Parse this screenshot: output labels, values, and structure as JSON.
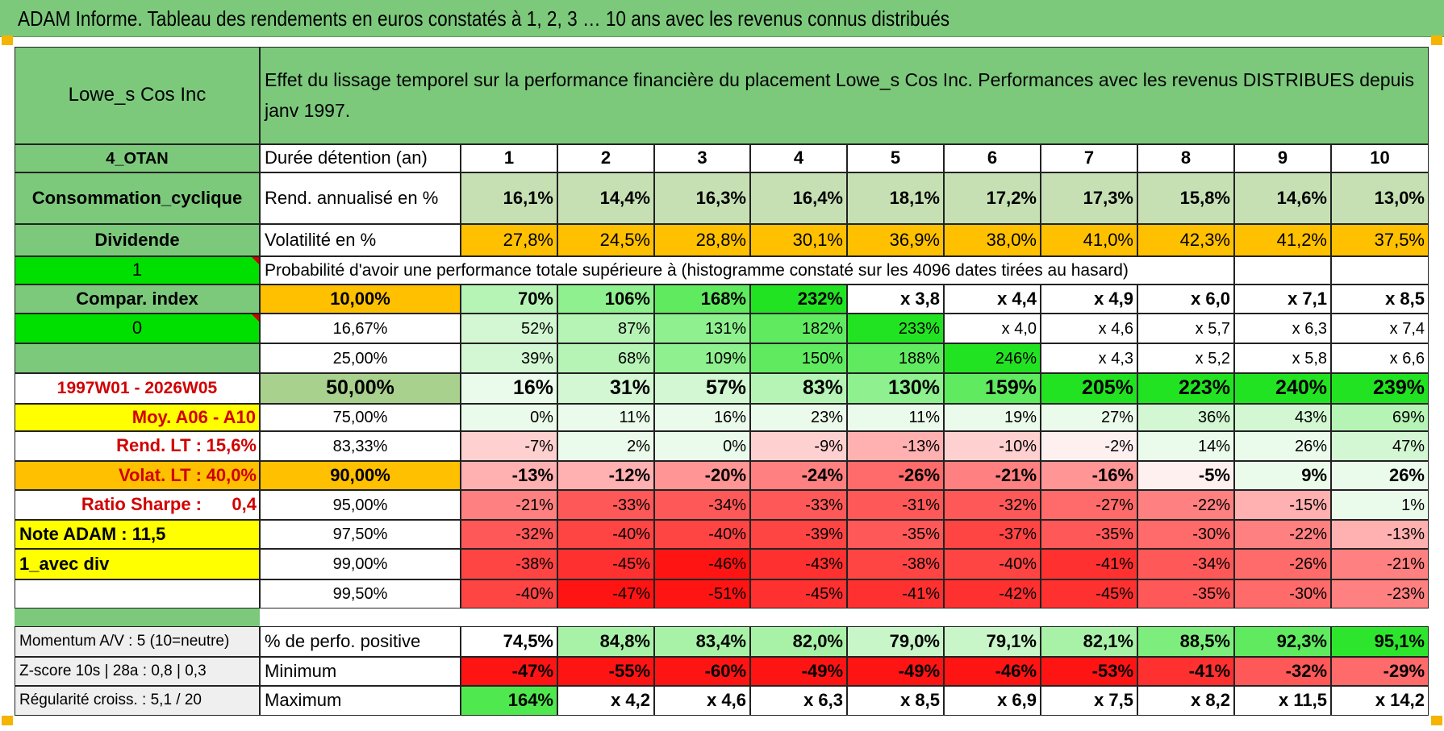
{
  "title": "ADAM Informe. Tableau des rendements en euros constatés à 1, 2, 3 … 10 ans avec les revenus connus distribués",
  "header": {
    "name": "Lowe_s Cos Inc",
    "description": "Effet du lissage temporel sur la performance financière du placement Lowe_s Cos Inc. Performances avec les revenus DISTRIBUES depuis janv 1997."
  },
  "left": {
    "sector_code": "4_OTAN",
    "sector": "Consommation_cyclique",
    "dividend": "Dividende",
    "flag1": "1",
    "compar": "Compar. index",
    "flag0": "0",
    "blank": "",
    "period": "1997W01 - 2026W05",
    "moy": "Moy. A06 - A10",
    "rend_label": "Rend. LT :",
    "rend_val": "15,6%",
    "volat_label": "Volat. LT :",
    "volat_val": "40,0%",
    "sharpe_label": "Ratio Sharpe :",
    "sharpe_val": "0,4",
    "note": "Note ADAM : 11,5",
    "avec_div": "1_avec div",
    "momentum": "Momentum A/V : 5 (10=neutre)",
    "zscore": "Z-score 10s | 28a : 0,8 | 0,3",
    "regularite": "Régularité croiss. : 5,1 / 20"
  },
  "labels": {
    "duree": "Durée détention (an)",
    "rend": "Rend. annualisé en %",
    "vol": "Volatilité en %",
    "prob": "Probabilité d'avoir une performance totale supérieure à (histogramme constaté sur les 4096 dates tirées au hasard)",
    "pos": "% de perfo. positive",
    "min": "Minimum",
    "max": "Maximum"
  },
  "years": [
    "1",
    "2",
    "3",
    "4",
    "5",
    "6",
    "7",
    "8",
    "9",
    "10"
  ],
  "rend": [
    "16,1%",
    "14,4%",
    "16,3%",
    "16,4%",
    "18,1%",
    "17,2%",
    "17,3%",
    "15,8%",
    "14,6%",
    "13,0%"
  ],
  "vol": [
    "27,8%",
    "24,5%",
    "28,8%",
    "30,1%",
    "36,9%",
    "38,0%",
    "41,0%",
    "42,3%",
    "41,2%",
    "37,5%"
  ],
  "prob_rows": [
    {
      "p": "10,00%",
      "v": [
        "70%",
        "106%",
        "168%",
        "232%",
        "x 3,8",
        "x 4,4",
        "x 4,9",
        "x 6,0",
        "x 7,1",
        "x 8,5"
      ]
    },
    {
      "p": "16,67%",
      "v": [
        "52%",
        "87%",
        "131%",
        "182%",
        "233%",
        "x 4,0",
        "x 4,6",
        "x 5,7",
        "x 6,3",
        "x 7,4"
      ]
    },
    {
      "p": "25,00%",
      "v": [
        "39%",
        "68%",
        "109%",
        "150%",
        "188%",
        "246%",
        "x 4,3",
        "x 5,2",
        "x 5,8",
        "x 6,6"
      ]
    },
    {
      "p": "50,00%",
      "v": [
        "16%",
        "31%",
        "57%",
        "83%",
        "130%",
        "159%",
        "205%",
        "223%",
        "240%",
        "239%"
      ]
    },
    {
      "p": "75,00%",
      "v": [
        "0%",
        "11%",
        "16%",
        "23%",
        "11%",
        "19%",
        "27%",
        "36%",
        "43%",
        "69%"
      ]
    },
    {
      "p": "83,33%",
      "v": [
        "-7%",
        "2%",
        "0%",
        "-9%",
        "-13%",
        "-10%",
        "-2%",
        "14%",
        "26%",
        "47%"
      ]
    },
    {
      "p": "90,00%",
      "v": [
        "-13%",
        "-12%",
        "-20%",
        "-24%",
        "-26%",
        "-21%",
        "-16%",
        "-5%",
        "9%",
        "26%"
      ]
    },
    {
      "p": "95,00%",
      "v": [
        "-21%",
        "-33%",
        "-34%",
        "-33%",
        "-31%",
        "-32%",
        "-27%",
        "-22%",
        "-15%",
        "1%"
      ]
    },
    {
      "p": "97,50%",
      "v": [
        "-32%",
        "-40%",
        "-40%",
        "-39%",
        "-35%",
        "-37%",
        "-35%",
        "-30%",
        "-22%",
        "-13%"
      ]
    },
    {
      "p": "99,00%",
      "v": [
        "-38%",
        "-45%",
        "-46%",
        "-43%",
        "-38%",
        "-40%",
        "-41%",
        "-34%",
        "-26%",
        "-21%"
      ]
    },
    {
      "p": "99,50%",
      "v": [
        "-40%",
        "-47%",
        "-51%",
        "-45%",
        "-41%",
        "-42%",
        "-45%",
        "-35%",
        "-30%",
        "-23%"
      ]
    }
  ],
  "pos": [
    "74,5%",
    "84,8%",
    "83,4%",
    "82,0%",
    "79,0%",
    "79,1%",
    "82,1%",
    "88,5%",
    "92,3%",
    "95,1%"
  ],
  "min": [
    "-47%",
    "-55%",
    "-60%",
    "-49%",
    "-49%",
    "-46%",
    "-53%",
    "-41%",
    "-32%",
    "-29%"
  ],
  "max": [
    "164%",
    "x 4,2",
    "x 4,6",
    "x 6,3",
    "x 8,5",
    "x 6,9",
    "x 7,5",
    "x 8,2",
    "x 11,5",
    "x 14,2"
  ],
  "colors": {
    "green_header": "#7cc97c",
    "bright_green": "#00e000",
    "orange": "#ffc000",
    "yellow": "#ffff00",
    "red_text": "#d10000"
  }
}
